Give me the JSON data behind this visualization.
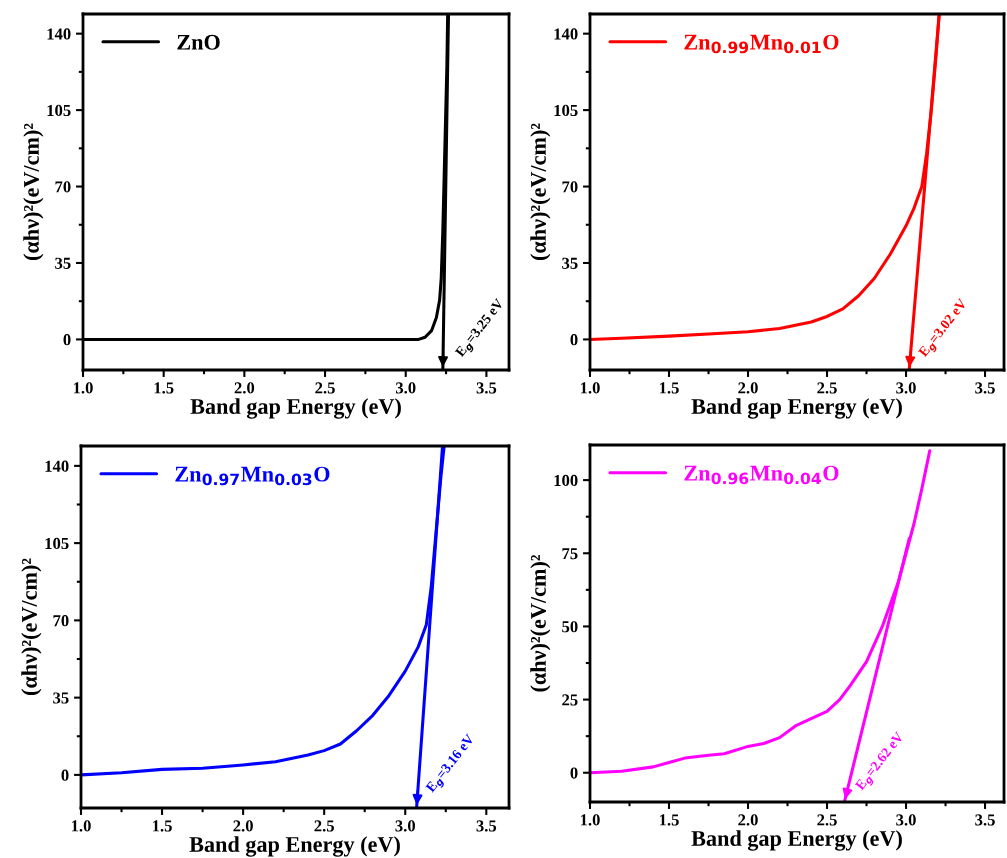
{
  "chart_data": [
    {
      "type": "line",
      "xlabel": "Band gap Energy (eV)",
      "ylabel": "(αhν)²(eV/cm)²",
      "xlim": [
        1.0,
        3.64
      ],
      "xticks": [
        {
          "value": 1,
          "label": "1.0"
        },
        1.5,
        {
          "value": 2,
          "label": "2.0"
        },
        2.5,
        {
          "value": 3,
          "label": "3.0"
        },
        3.5
      ],
      "ylim": [
        -14,
        149
      ],
      "yticks": [
        0,
        35,
        70,
        105,
        140
      ],
      "legend": "top left",
      "grid": false,
      "series": [
        {
          "name": "ZnO",
          "color": "#000000",
          "x": [
            1.0,
            1.5,
            2.0,
            2.5,
            3.0,
            3.08,
            3.12,
            3.16,
            3.19,
            3.21,
            3.22,
            3.23,
            3.24,
            3.25,
            3.255,
            3.26
          ],
          "values": [
            0,
            0,
            0,
            0,
            0,
            0,
            1,
            4,
            10,
            18,
            28,
            50,
            80,
            110,
            125,
            149
          ]
        },
        {
          "type": "line",
          "color": "#000000",
          "x": [
            3.23,
            3.265
          ],
          "values": [
            -14,
            149
          ]
        }
      ],
      "annotations": [
        {
          "text": "E$_{g}$=3.25 eV",
          "x": 3.25,
          "y": 0
        }
      ]
    },
    {
      "type": "line",
      "xlabel": "Band gap Energy (eV)",
      "ylabel": "(αhν)²(eV/cm)²",
      "xlim": [
        1.0,
        3.62
      ],
      "xticks": [
        {
          "value": 1,
          "label": "1.0"
        },
        1.5,
        {
          "value": 2,
          "label": "2.0"
        },
        2.5,
        {
          "value": 3,
          "label": "3.0"
        },
        3.5
      ],
      "ylim": [
        -14,
        149
      ],
      "yticks": [
        0,
        35,
        70,
        105,
        140
      ],
      "legend": "top left",
      "grid": false,
      "series": [
        {
          "name": "Zn$_{0.99}$Mn$_{0.01}$O",
          "color": "#ff0000",
          "x": [
            1.0,
            1.2,
            1.5,
            1.75,
            2.0,
            2.2,
            2.4,
            2.5,
            2.6,
            2.7,
            2.8,
            2.9,
            3.0,
            3.05,
            3.1,
            3.13,
            3.16,
            3.19,
            3.21
          ],
          "values": [
            0,
            0.5,
            1.5,
            2.5,
            3.5,
            5,
            8,
            10.5,
            14,
            20,
            28,
            39,
            52,
            60,
            70,
            85,
            105,
            130,
            149
          ]
        },
        {
          "type": "line",
          "color": "#ff0000",
          "x": [
            3.02,
            3.21
          ],
          "values": [
            -14,
            149
          ]
        }
      ],
      "annotations": [
        {
          "text": "E$_{g}$=3.02 eV",
          "x": 3.02,
          "y": 0
        }
      ]
    },
    {
      "type": "line",
      "xlabel": "Band gap Energy (eV)",
      "ylabel": "(αhν)²(eV/cm)²",
      "xlim": [
        1.0,
        3.64
      ],
      "xticks": [
        {
          "value": 1,
          "label": "1.0"
        },
        1.5,
        {
          "value": 2,
          "label": "2.0"
        },
        2.5,
        {
          "value": 3,
          "label": "3.0"
        },
        3.5
      ],
      "ylim": [
        -15,
        149
      ],
      "yticks": [
        0,
        35,
        70,
        105,
        140
      ],
      "legend": "top left",
      "grid": false,
      "series": [
        {
          "name": "Zn$_{0.97}$Mn$_{0.03}$O",
          "color": "#0000ff",
          "x": [
            1.0,
            1.25,
            1.5,
            1.75,
            2.0,
            2.2,
            2.4,
            2.5,
            2.6,
            2.7,
            2.8,
            2.9,
            3.0,
            3.08,
            3.13,
            3.16,
            3.19,
            3.22,
            3.24
          ],
          "values": [
            0,
            1,
            2.5,
            3,
            4.5,
            6,
            9,
            11,
            14,
            20,
            27,
            36,
            47,
            58,
            68,
            85,
            110,
            135,
            149
          ]
        },
        {
          "type": "line",
          "color": "#0000ff",
          "x": [
            3.07,
            3.23
          ],
          "values": [
            -15,
            149
          ]
        }
      ],
      "annotations": [
        {
          "text": "E$_{g}$=3.16 eV",
          "x": 3.07,
          "y": 0
        }
      ]
    },
    {
      "type": "line",
      "xlabel": "Band gap Energy (eV)",
      "ylabel": "(αhν)²(eV/cm)²",
      "xlim": [
        1.0,
        3.62
      ],
      "xticks": [
        {
          "value": 1,
          "label": "1.0"
        },
        1.5,
        {
          "value": 2,
          "label": "2.0"
        },
        2.5,
        {
          "value": 3,
          "label": "3.0"
        },
        3.5
      ],
      "ylim": [
        -10,
        112
      ],
      "yticks": [
        0,
        25,
        50,
        75,
        100
      ],
      "legend": "top left",
      "grid": false,
      "series": [
        {
          "name": "Zn$_{0.96}$Mn$_{0.04}$O",
          "color": "#ff00ff",
          "x": [
            1.0,
            1.2,
            1.4,
            1.5,
            1.6,
            1.75,
            1.85,
            2.0,
            2.1,
            2.2,
            2.3,
            2.42,
            2.5,
            2.58,
            2.65,
            2.75,
            2.85,
            2.95,
            3.0,
            3.05,
            3.1,
            3.15
          ],
          "values": [
            0,
            0.5,
            2,
            3.5,
            5,
            6,
            6.5,
            9,
            10,
            12,
            16,
            19,
            21,
            25,
            30,
            38,
            50,
            65,
            75,
            85,
            97,
            110
          ]
        },
        {
          "type": "line",
          "color": "#ff00ff",
          "x": [
            2.61,
            3.02
          ],
          "values": [
            -10,
            80
          ]
        }
      ],
      "annotations": [
        {
          "text": "E$_{g}$=2.62 eV",
          "x": 2.62,
          "y": 0
        }
      ]
    }
  ]
}
